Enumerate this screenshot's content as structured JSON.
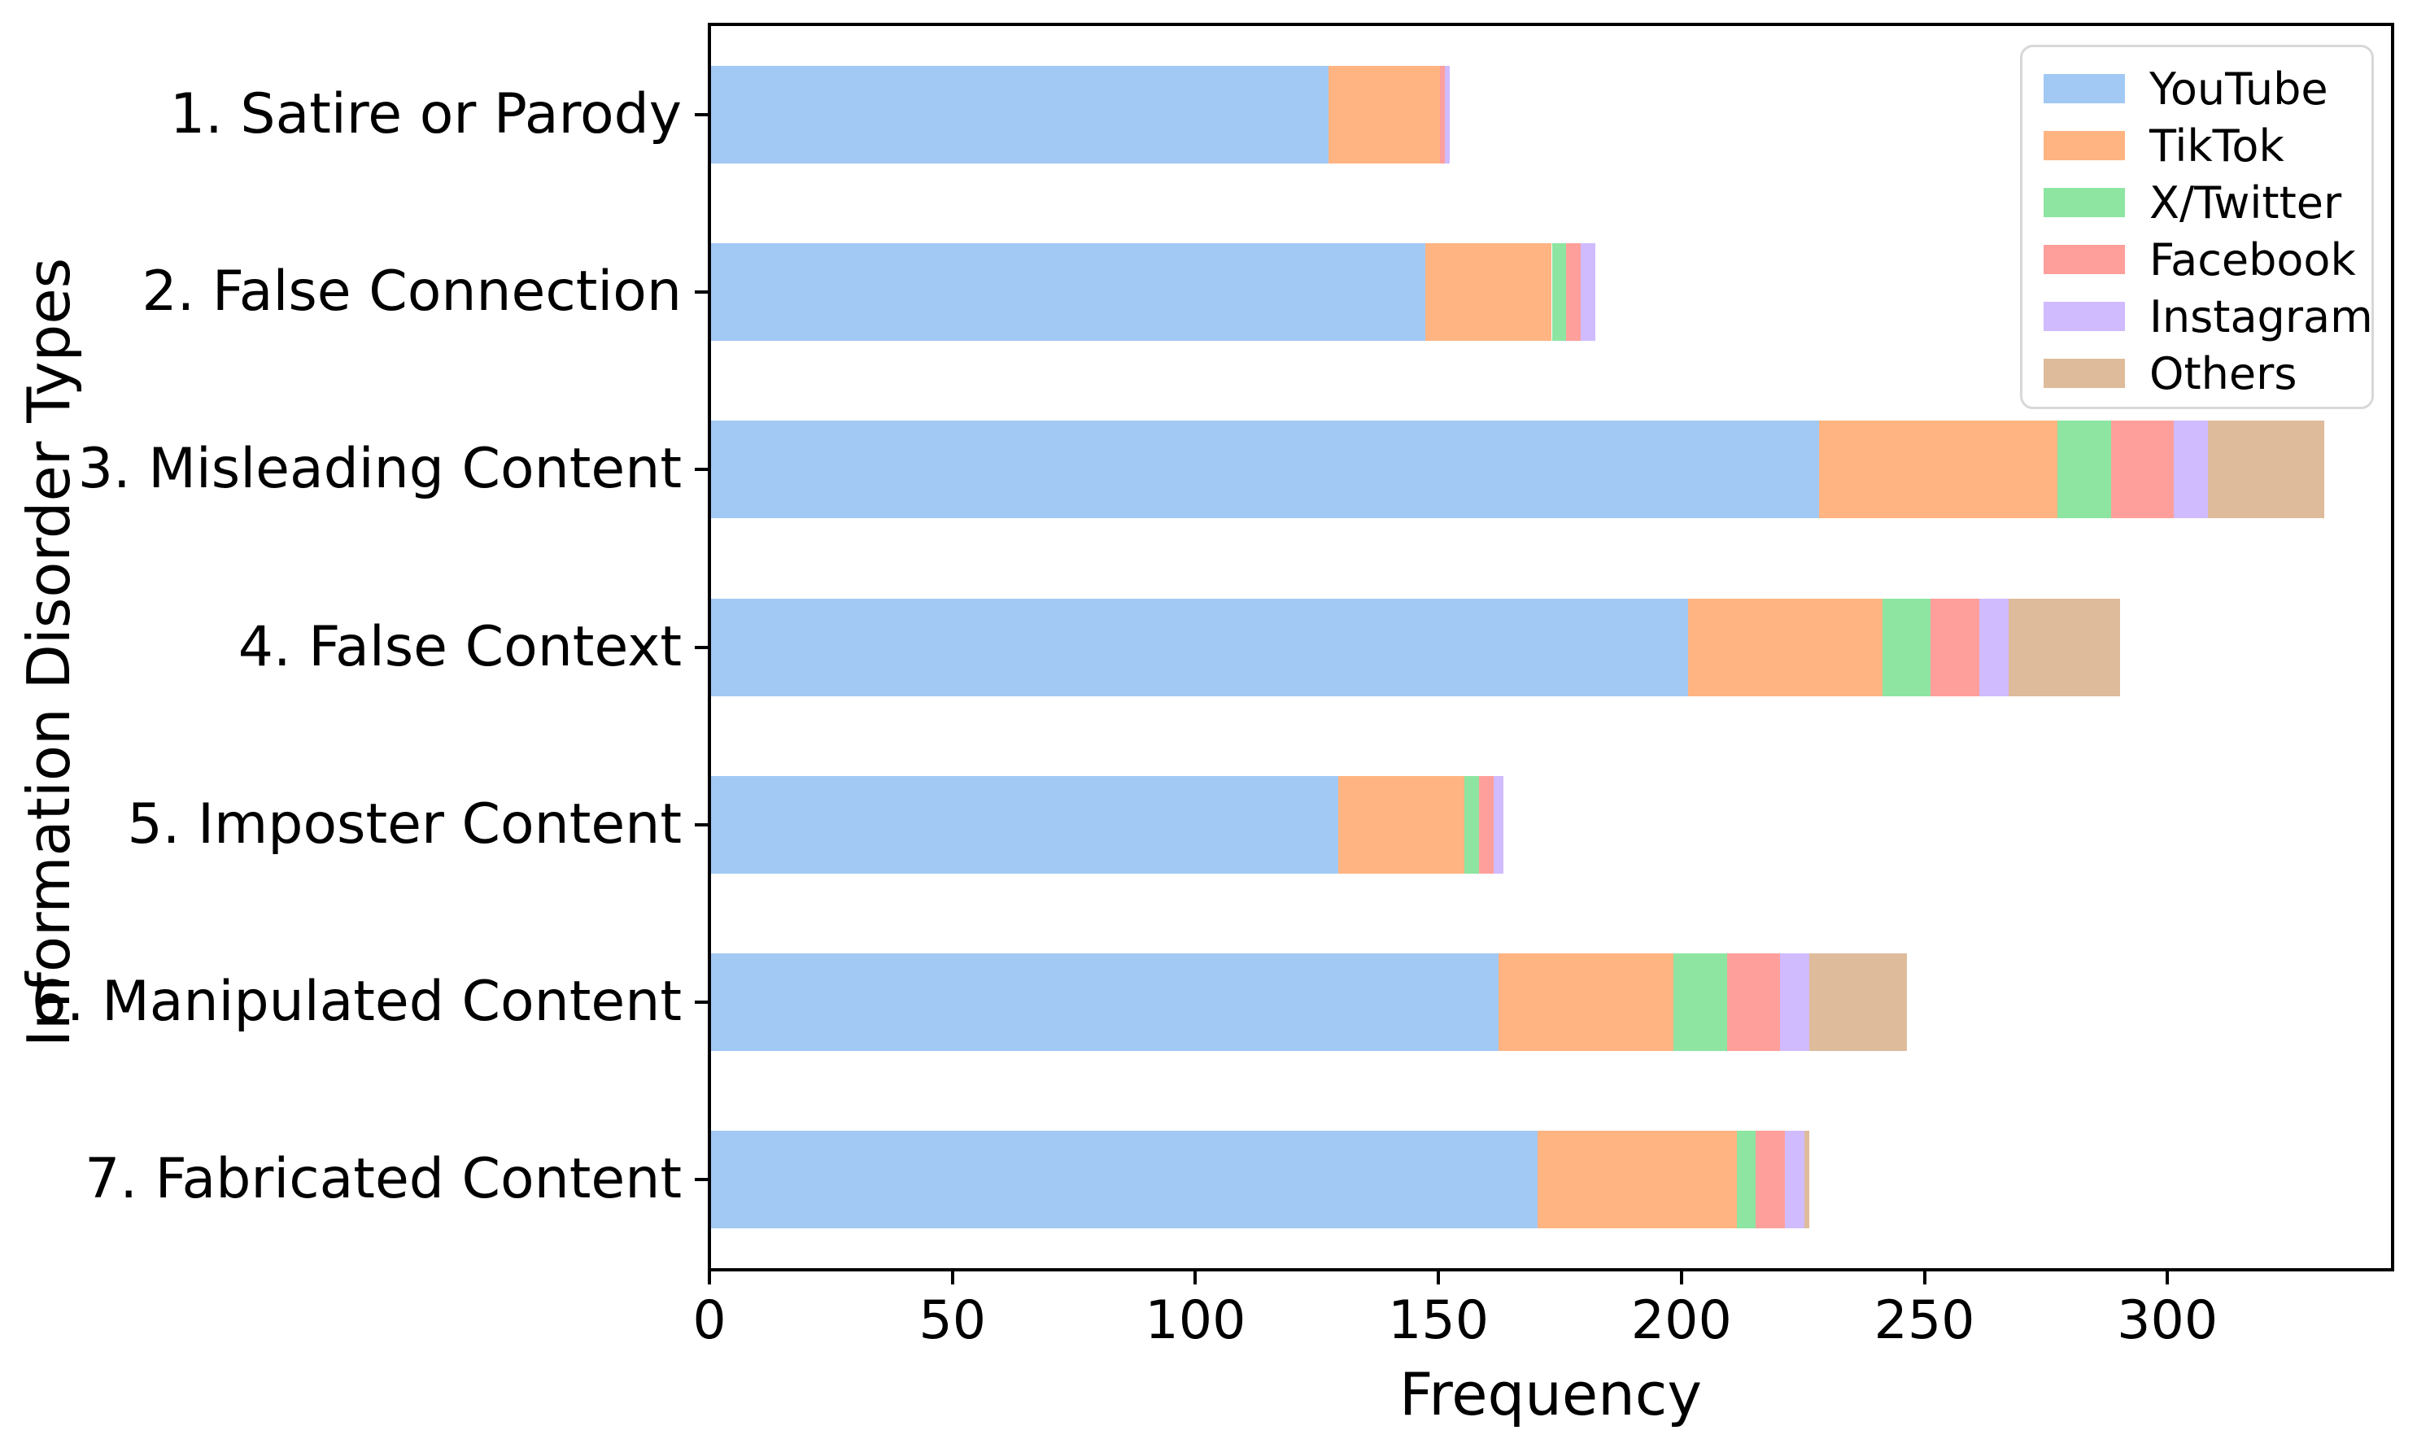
{
  "chart_data": {
    "type": "bar",
    "orientation": "horizontal",
    "stacked": true,
    "title": "",
    "xlabel": "Frequency",
    "ylabel": "Information Disorder Types",
    "categories": [
      "1. Satire or Parody",
      "2. False Connection",
      "3. Misleading Content",
      "4. False Context",
      "5. Imposter Content",
      "6. Manipulated Content",
      "7. Fabricated Content"
    ],
    "series": [
      {
        "name": "YouTube",
        "color": "#a1c9f4",
        "values": [
          127,
          147,
          228,
          201,
          129,
          162,
          170
        ]
      },
      {
        "name": "TikTok",
        "color": "#ffb482",
        "values": [
          23,
          26,
          49,
          40,
          26,
          36,
          41
        ]
      },
      {
        "name": "X/Twitter",
        "color": "#8de5a1",
        "values": [
          0,
          3,
          11,
          10,
          3,
          11,
          4
        ]
      },
      {
        "name": "Facebook",
        "color": "#ff9f9b",
        "values": [
          1,
          3,
          13,
          10,
          3,
          11,
          6
        ]
      },
      {
        "name": "Instagram",
        "color": "#d0bbff",
        "values": [
          1,
          3,
          7,
          6,
          2,
          6,
          4
        ]
      },
      {
        "name": "Others",
        "color": "#debb9b",
        "values": [
          0,
          0,
          24,
          23,
          0,
          20,
          1
        ]
      }
    ],
    "category_totals": [
      152,
      182,
      332,
      290,
      163,
      246,
      226
    ],
    "x_ticks": [
      0,
      50,
      100,
      150,
      200,
      250,
      300
    ],
    "xlim": [
      0,
      347
    ],
    "grid": false,
    "legend_position": "upper right"
  },
  "colors": {
    "background": "#ffffff",
    "axis": "#000000",
    "legend_border": "#d8d8d8"
  }
}
